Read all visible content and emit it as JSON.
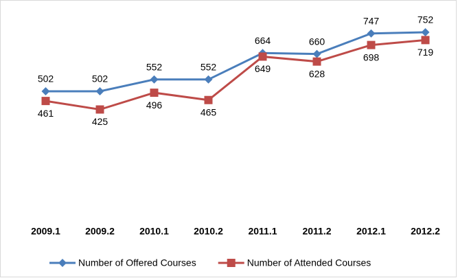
{
  "chart_data": {
    "type": "line",
    "categories": [
      "2009.1",
      "2009.2",
      "2010.1",
      "2010.2",
      "2011.1",
      "2011.2",
      "2012.1",
      "2012.2"
    ],
    "series": [
      {
        "name": "Number of Offered Courses",
        "color": "#4a7ebb",
        "marker": "diamond",
        "values": [
          502,
          502,
          552,
          552,
          664,
          660,
          747,
          752
        ]
      },
      {
        "name": "Number of Attended Courses",
        "color": "#be4b48",
        "marker": "square",
        "values": [
          461,
          425,
          496,
          465,
          649,
          628,
          698,
          719
        ]
      }
    ],
    "ylim": [
      0,
      800
    ],
    "legend": "bottom"
  }
}
